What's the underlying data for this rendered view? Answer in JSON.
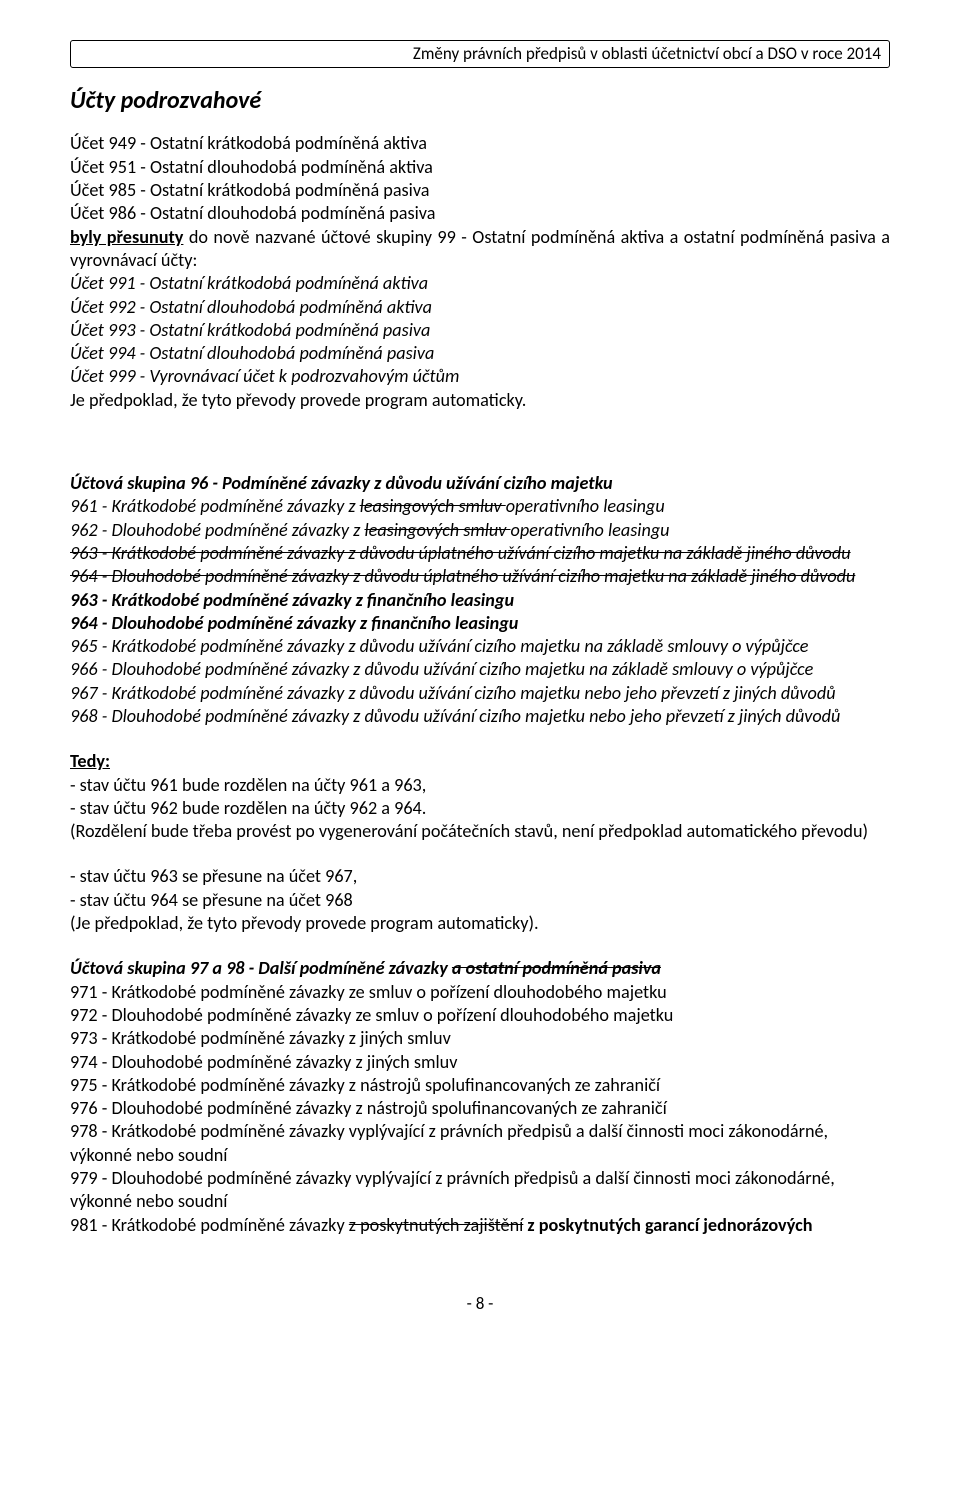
{
  "header": {
    "text": "Změny právních předpisů v oblasti účetnictví obcí a DSO v roce 2014"
  },
  "title": "Účty podrozvahové",
  "block1": {
    "l1": "Účet 949 - Ostatní krátkodobá podmíněná aktiva",
    "l2": "Účet 951 - Ostatní dlouhodobá podmíněná aktiva",
    "l3": "Účet 985 - Ostatní krátkodobá podmíněná pasiva",
    "l4": "Účet 986 - Ostatní dlouhodobá podmíněná pasiva",
    "moved_label": "byly přesunuty",
    "moved_rest": " do nově nazvané účtové skupiny 99 - Ostatní podmíněná aktiva a ostatní podmíněná pasiva a vyrovnávací účty:",
    "n1": "Účet 991 - Ostatní krátkodobá podmíněná aktiva",
    "n2": "Účet 992 - Ostatní dlouhodobá podmíněná aktiva",
    "n3": "Účet 993 - Ostatní krátkodobá podmíněná pasiva",
    "n4": "Účet 994 - Ostatní dlouhodobá podmíněná pasiva",
    "n5": "Účet 999 - Vyrovnávací účet k podrozvahovým účtům",
    "note": "Je předpoklad, že tyto převody provede program automaticky."
  },
  "group96": {
    "title": "Účtová skupina 96 - Podmíněné závazky z důvodu užívání cizího majetku",
    "l961a": "961 - Krátkodobé podmíněné závazky z ",
    "l961_strike": "leasingových smluv ",
    "l961b": "operativního leasingu",
    "l962a": "962 - Dlouhodobé podmíněné závazky z ",
    "l962_strike": "leasingových smluv ",
    "l962b": "operativního leasingu",
    "l963s": "963 - Krátkodobé podmíněné závazky z důvodu úplatného užívání cizího majetku na základě jiného důvodu",
    "l964s": "964 - Dlouhodobé podmíněné závazky z důvodu úplatného užívání cizího majetku na základě jiného důvodu",
    "l963n": "963 - Krátkodobé podmíněné závazky z finančního leasingu",
    "l964n": "964 - Dlouhodobé podmíněné závazky z finančního leasingu",
    "l965": "965 - Krátkodobé podmíněné závazky z důvodu užívání cizího majetku na základě smlouvy o výpůjčce",
    "l966": "966 - Dlouhodobé podmíněné závazky z důvodu užívání cizího majetku na základě smlouvy o výpůjčce",
    "l967": "967 - Krátkodobé podmíněné závazky z důvodu užívání cizího majetku nebo jeho převzetí z jiných důvodů",
    "l968": "968 - Dlouhodobé podmíněné závazky z důvodu užívání cizího majetku nebo jeho převzetí z jiných důvodů"
  },
  "tedy": {
    "label": "Tedy:",
    "l1": "- stav účtu 961 bude rozdělen na účty 961 a 963,",
    "l2": "- stav účtu 962 bude rozdělen na účty 962 a 964.",
    "l3": "(Rozdělení bude třeba provést po vygenerování počátečních stavů, není předpoklad automatického převodu)",
    "l4": "- stav účtu 963 se přesune na účet 967,",
    "l5": "- stav účtu 964 se přesune na účet 968",
    "l6": "(Je předpoklad, že tyto převody provede program automaticky)."
  },
  "group97": {
    "title_a": "Účtová skupina 97 a 98 - Další podmíněné závazky ",
    "title_strike": "a ostatní podmíněná pasiva",
    "l971": "971 - Krátkodobé podmíněné závazky ze smluv o pořízení dlouhodobého majetku",
    "l972": "972 - Dlouhodobé podmíněné závazky ze smluv o pořízení dlouhodobého majetku",
    "l973": "973 - Krátkodobé podmíněné závazky z jiných smluv",
    "l974": "974 - Dlouhodobé podmíněné závazky z jiných smluv",
    "l975": "975 - Krátkodobé podmíněné závazky z nástrojů spolufinancovaných ze zahraničí",
    "l976": "976 - Dlouhodobé podmíněné závazky z nástrojů spolufinancovaných ze zahraničí",
    "l978": "978 - Krátkodobé podmíněné závazky vyplývající z právních předpisů a další činnosti moci zákonodárné, výkonné nebo soudní",
    "l979": "979 - Dlouhodobé podmíněné závazky vyplývající z právních předpisů a další činnosti moci zákonodárné, výkonné nebo soudní",
    "l981a": "981 - Krátkodobé podmíněné závazky ",
    "l981_strike": "z poskytnutých zajištění",
    "l981b": " z poskytnutých garancí jednorázových"
  },
  "footer": {
    "page": "- 8 -"
  }
}
